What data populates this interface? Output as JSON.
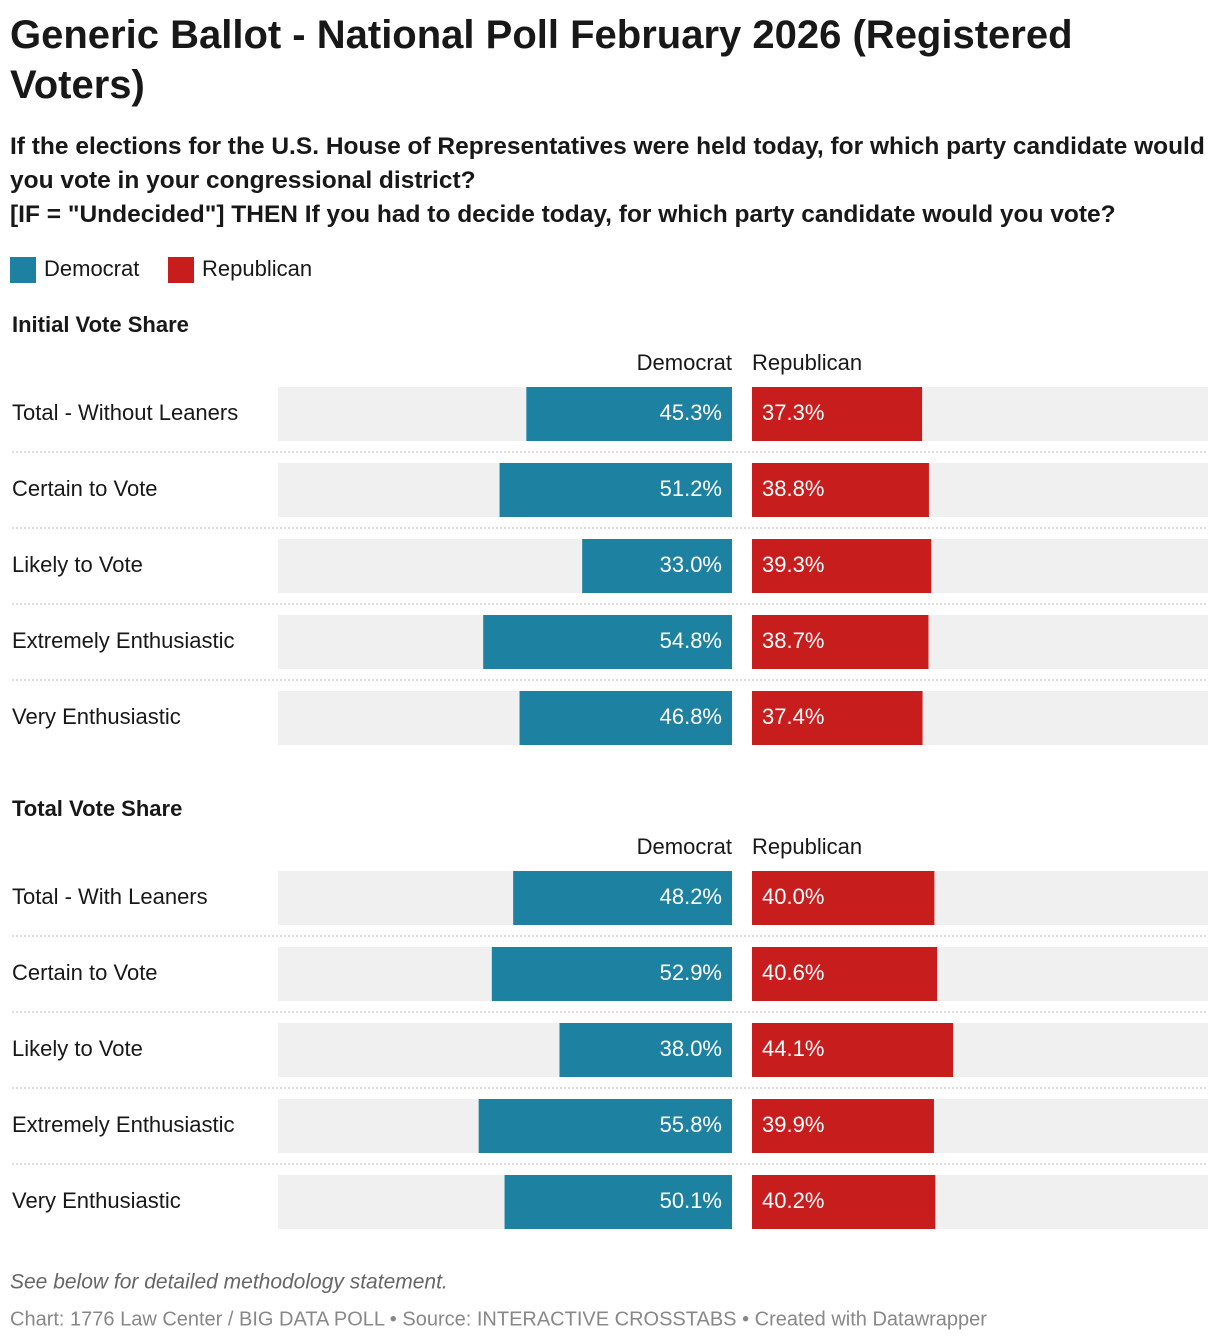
{
  "title": "Generic Ballot - National Poll February 2026 (Registered Voters)",
  "subtitle": [
    "If the elections for the U.S. House of Representatives were held today, for which party candidate would you vote in your congressional district?",
    "[IF = \"Undecided\"] THEN If you had to decide today, for which party candidate would you vote?"
  ],
  "notes": "See below for detailed methodology statement.",
  "source": "Chart: 1776 Law Center / BIG DATA POLL • Source: INTERACTIVE CROSSTABS • Created with Datawrapper",
  "chart_data": [
    {
      "type": "split-bar",
      "title": "Initial Vote Share",
      "xlim": [
        0,
        100
      ],
      "categories": [
        "Total - Without Leaners",
        "Certain to Vote",
        "Likely to Vote",
        "Extremely Enthusiastic",
        "Very Enthusiastic"
      ],
      "series": [
        {
          "name": "Democrat",
          "color": "#1d81a2",
          "values": [
            45.3,
            51.2,
            33.0,
            54.8,
            46.8
          ],
          "value_labels": [
            "45.3%",
            "51.2%",
            "33.0%",
            "54.8%",
            "46.8%"
          ]
        },
        {
          "name": "Republican",
          "color": "#c71e1d",
          "values": [
            37.3,
            38.8,
            39.3,
            38.7,
            37.4
          ],
          "value_labels": [
            "37.3%",
            "38.8%",
            "39.3%",
            "38.7%",
            "37.4%"
          ]
        }
      ]
    },
    {
      "type": "split-bar",
      "title": "Total Vote Share",
      "xlim": [
        0,
        100
      ],
      "categories": [
        "Total - With Leaners",
        "Certain to Vote",
        "Likely to Vote",
        "Extremely Enthusiastic",
        "Very Enthusiastic"
      ],
      "series": [
        {
          "name": "Democrat",
          "color": "#1d81a2",
          "values": [
            48.2,
            52.9,
            38.0,
            55.8,
            50.1
          ],
          "value_labels": [
            "48.2%",
            "52.9%",
            "38.0%",
            "55.8%",
            "50.1%"
          ]
        },
        {
          "name": "Republican",
          "color": "#c71e1d",
          "values": [
            40.0,
            40.6,
            44.1,
            39.9,
            40.2
          ],
          "value_labels": [
            "40.0%",
            "40.6%",
            "44.1%",
            "39.9%",
            "40.2%"
          ]
        }
      ]
    }
  ]
}
